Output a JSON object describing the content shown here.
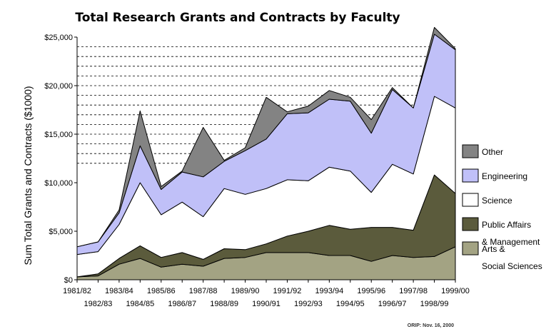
{
  "chart_data": {
    "type": "area",
    "stacked": true,
    "title": "Total Research Grants and Contracts by Faculty",
    "xlabel": "",
    "ylabel": "Sum Total Grants and Contracts ($1000)",
    "ylim": [
      0,
      25000
    ],
    "yticks": [
      0,
      5000,
      10000,
      15000,
      20000,
      25000
    ],
    "ytick_labels": [
      "$0",
      "$5,000",
      "$10,000",
      "$15,000",
      "$20,000",
      "$25,000"
    ],
    "grid": "dashed horizontal lines every 1000, upper part of plot",
    "categories": [
      "1981/82",
      "1982/83",
      "1983/84",
      "1984/85",
      "1985/86",
      "1986/87",
      "1987/88",
      "1988/89",
      "1989/90",
      "1990/91",
      "1991/92",
      "1992/93",
      "1993/94",
      "1994/95",
      "1995/96",
      "1996/97",
      "1997/98",
      "1998/99",
      "1999/00"
    ],
    "series": [
      {
        "name": "Arts & Social Sciences",
        "color": "#a3a383",
        "values": [
          300,
          400,
          1600,
          2200,
          1300,
          1600,
          1400,
          2200,
          2300,
          2800,
          2800,
          2800,
          2500,
          2500,
          1900,
          2500,
          2300,
          2400,
          3400
        ]
      },
      {
        "name": "Public Affairs & Management",
        "color": "#5b5b3c",
        "values": [
          0,
          200,
          600,
          1300,
          1000,
          1200,
          700,
          1000,
          800,
          900,
          1700,
          2200,
          3100,
          2700,
          3500,
          2900,
          2800,
          8400,
          5500
        ]
      },
      {
        "name": "Science",
        "color": "#ffffff",
        "values": [
          2300,
          2300,
          3500,
          6500,
          4400,
          5200,
          4400,
          6200,
          5700,
          5700,
          5800,
          5200,
          6000,
          6000,
          3600,
          6500,
          5800,
          8100,
          8800
        ]
      },
      {
        "name": "Engineering",
        "color": "#c0c0f8",
        "values": [
          800,
          1000,
          1200,
          3800,
          2600,
          3100,
          4100,
          2800,
          4500,
          5100,
          6800,
          7000,
          7000,
          7200,
          6100,
          7700,
          6800,
          6400,
          6000
        ]
      },
      {
        "name": "Other",
        "color": "#838383",
        "values": [
          0,
          0,
          300,
          3600,
          300,
          100,
          5100,
          100,
          300,
          4300,
          200,
          700,
          900,
          400,
          1400,
          200,
          0,
          700,
          100
        ]
      }
    ],
    "legend_position": "right"
  },
  "legend": [
    {
      "lines": [
        "Other"
      ],
      "color": "#838383"
    },
    {
      "lines": [
        "Engineering"
      ],
      "color": "#c0c0f8"
    },
    {
      "lines": [
        "Science"
      ],
      "color": "#ffffff"
    },
    {
      "lines": [
        "Public Affairs",
        "& Management"
      ],
      "color": "#5b5b3c"
    },
    {
      "lines": [
        "Arts &",
        "Social Sciences"
      ],
      "color": "#a3a383"
    }
  ],
  "footer": "ORIP: Nov. 16, 2000"
}
